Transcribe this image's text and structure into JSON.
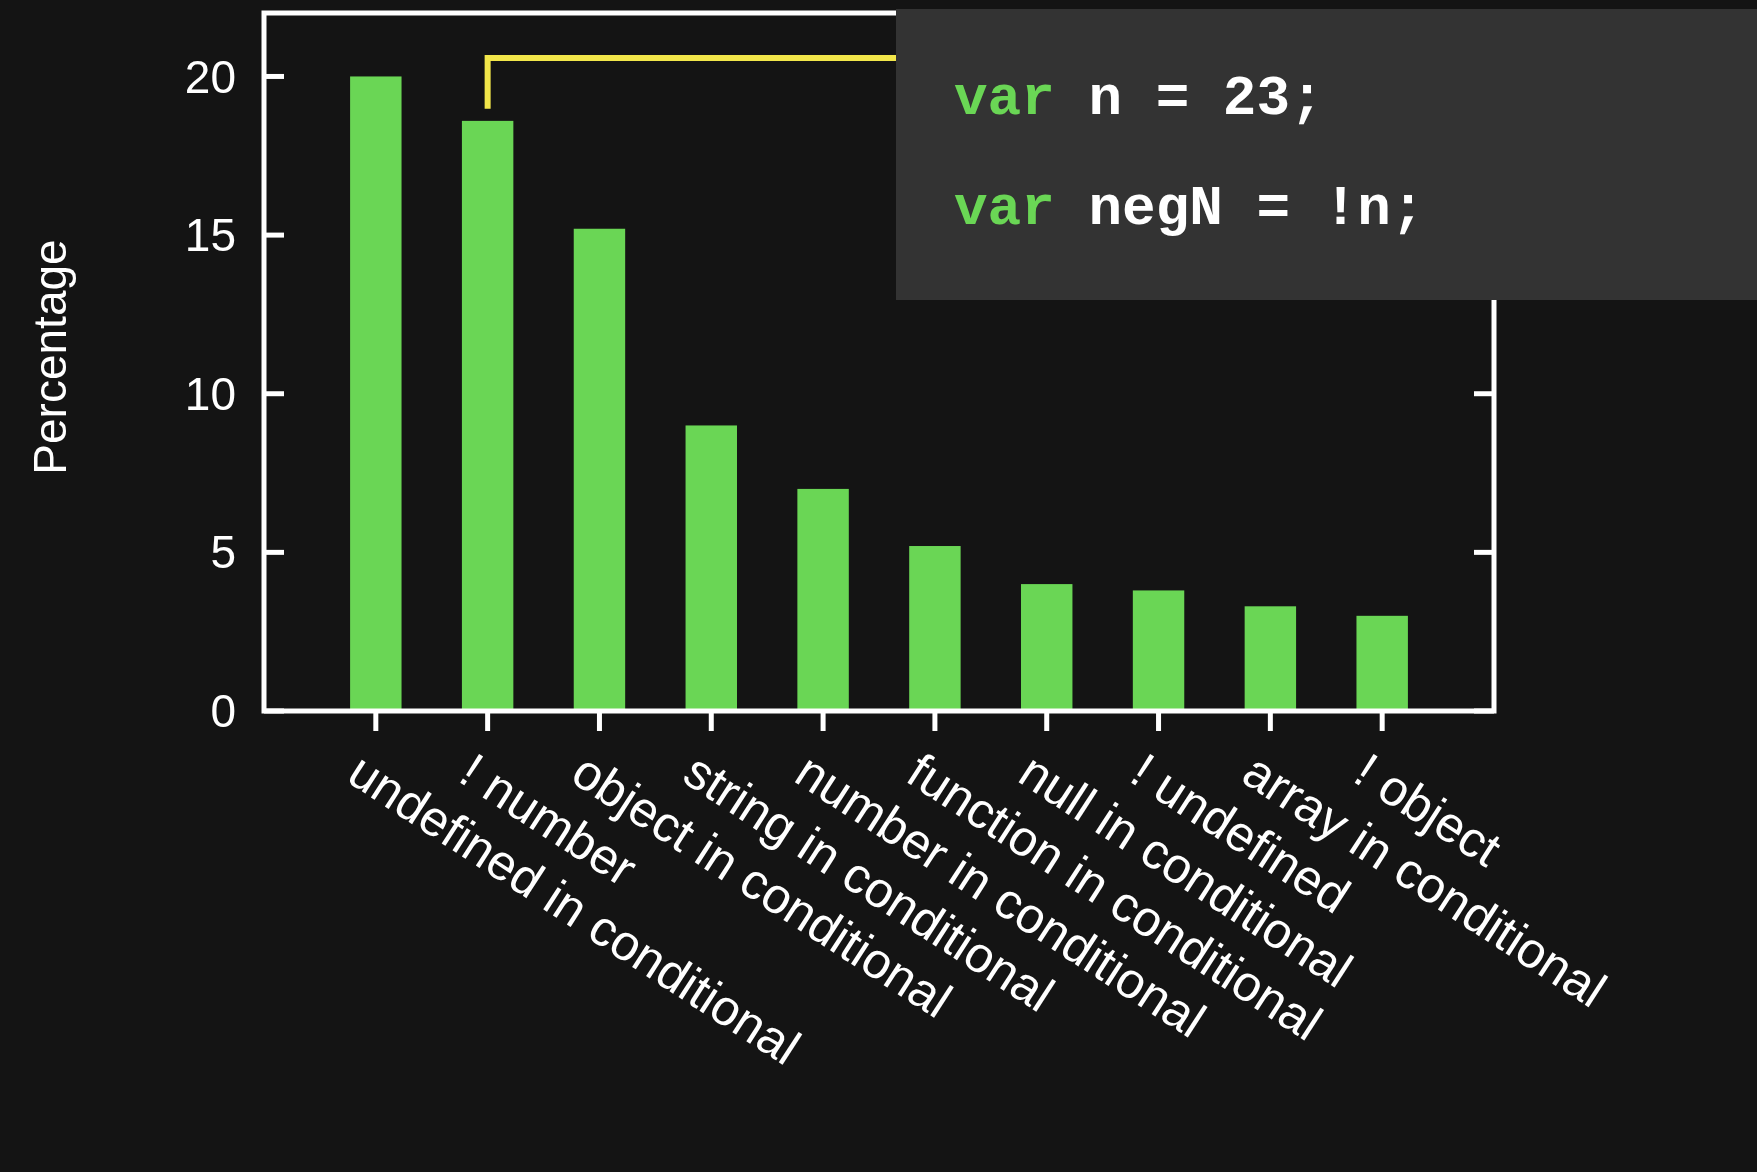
{
  "chart_data": {
    "type": "bar",
    "ylabel": "Percentage",
    "categories": [
      "undefined in conditional",
      "! number",
      "object in conditional",
      "string in conditional",
      "number in conditional",
      "function in conditional",
      "null in conditional",
      "! undefined",
      "array in conditional",
      "! object"
    ],
    "values": [
      20,
      18.6,
      15.2,
      9,
      7,
      5.2,
      4,
      3.8,
      3.3,
      3
    ],
    "color": "#6ad655",
    "ylim": [
      0,
      22
    ],
    "yticks": [
      0,
      5,
      10,
      15,
      20
    ],
    "grid": false,
    "annotations": [
      "var n = 23;",
      "var negN = !n;"
    ]
  }
}
